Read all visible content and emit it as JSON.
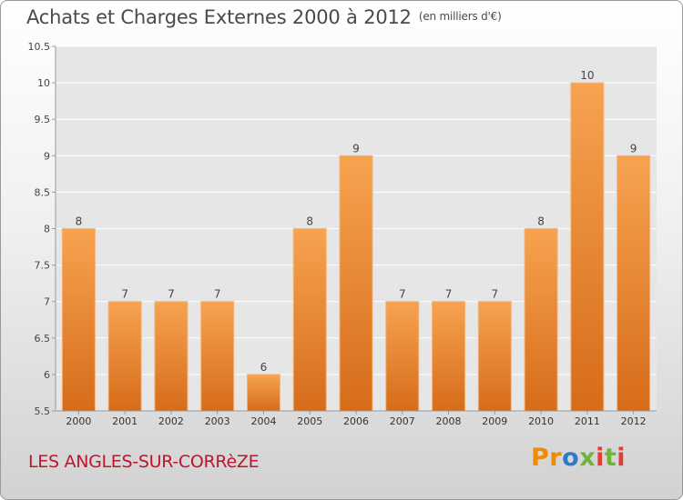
{
  "header": {
    "title": "Achats et Charges Externes 2000 à 2012",
    "subtitle": "(en milliers d'€)"
  },
  "footer": {
    "place": "LES ANGLES-SUR-CORRèZE",
    "logo_text": "Proxiti"
  },
  "colors": {
    "bar_top": "#f7a350",
    "bar_bottom": "#d66c1a",
    "axis": "#9a9a9a",
    "grid": "#ffffff",
    "title": "#4a4a4a",
    "place": "#c0142c"
  },
  "chart_data": {
    "type": "bar",
    "title": "Achats et Charges Externes 2000 à 2012",
    "subtitle": "(en milliers d'€)",
    "categories": [
      "2000",
      "2001",
      "2002",
      "2003",
      "2004",
      "2005",
      "2006",
      "2007",
      "2008",
      "2009",
      "2010",
      "2011",
      "2012"
    ],
    "values": [
      8,
      7,
      7,
      7,
      6,
      8,
      9,
      7,
      7,
      7,
      8,
      10,
      9
    ],
    "data_labels": [
      "8",
      "7",
      "7",
      "7",
      "6",
      "8",
      "9",
      "7",
      "7",
      "7",
      "8",
      "10",
      "9"
    ],
    "ylim": [
      5.5,
      10.5
    ],
    "yticks": [
      "5.5",
      "6",
      "6.5",
      "7",
      "7.5",
      "8",
      "8.5",
      "9",
      "9.5",
      "10",
      "10.5"
    ],
    "grid": true,
    "xlabel": "",
    "ylabel": ""
  }
}
